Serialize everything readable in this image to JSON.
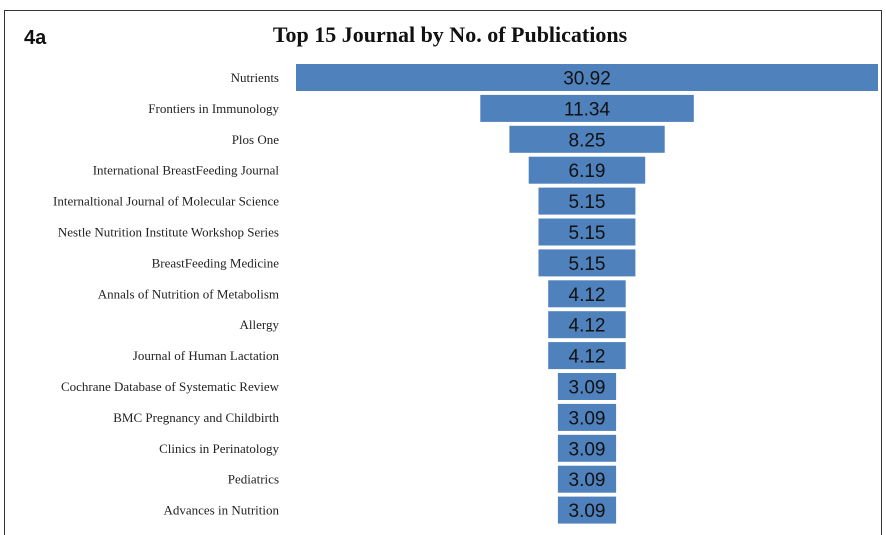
{
  "figure": {
    "panel_label": "4a"
  },
  "chart_data": {
    "type": "bar",
    "orientation": "horizontal",
    "layout": "funnel-centered",
    "title": "Top 15 Journal by No. of Publications",
    "xlabel": "",
    "ylabel": "",
    "bar_color": "#4f81bd",
    "xlim": [
      0,
      30.92
    ],
    "grid": false,
    "legend": "none",
    "categories": [
      "Nutrients",
      "Frontiers in Immunology",
      "Plos One",
      "International BreastFeeding Journal",
      "Internaltional Journal of Molecular Science",
      "Nestle Nutrition Institute Workshop Series",
      "BreastFeeding Medicine",
      "Annals of Nutrition of Metabolism",
      "Allergy",
      "Journal of Human Lactation",
      "Cochrane Database of Systematic Review",
      "BMC Pregnancy and Childbirth",
      "Clinics in Perinatology",
      "Pediatrics",
      "Advances in Nutrition"
    ],
    "values": [
      30.92,
      11.34,
      8.25,
      6.19,
      5.15,
      5.15,
      5.15,
      4.12,
      4.12,
      4.12,
      3.09,
      3.09,
      3.09,
      3.09,
      3.09
    ],
    "data_labels": [
      "30.92",
      "11.34",
      "8.25",
      "6.19",
      "5.15",
      "5.15",
      "5.15",
      "4.12",
      "4.12",
      "4.12",
      "3.09",
      "3.09",
      "3.09",
      "3.09",
      "3.09"
    ]
  }
}
